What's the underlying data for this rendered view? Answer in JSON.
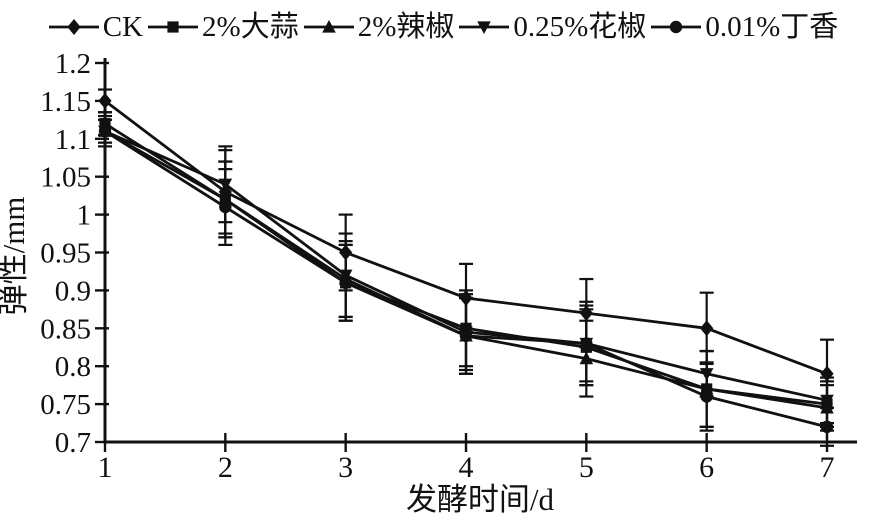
{
  "chart_data": {
    "type": "line",
    "title": "",
    "xlabel": "发酵时间/d",
    "ylabel": "弹性/mm",
    "xlim": [
      1,
      7
    ],
    "ylim": [
      0.7,
      1.2
    ],
    "ytick_step": 0.05,
    "xticks": [
      "1",
      "2",
      "3",
      "4",
      "5",
      "6",
      "7"
    ],
    "yticks": [
      "0.7",
      "0.75",
      "0.8",
      "0.85",
      "0.9",
      "0.95",
      "1",
      "1.05",
      "1.1",
      "1.15",
      "1.2"
    ],
    "grid": false,
    "legend_position": "top",
    "line_color": "#111111",
    "background": "#ffffff",
    "x": [
      1,
      2,
      3,
      4,
      5,
      6,
      7
    ],
    "series": [
      {
        "name": "CK",
        "marker": "diamond",
        "values": [
          1.15,
          1.03,
          0.95,
          0.89,
          0.87,
          0.85,
          0.79
        ],
        "errors": [
          0.015,
          0.055,
          0.05,
          0.045,
          0.045,
          0.047,
          0.045
        ]
      },
      {
        "name": "2%大蒜",
        "marker": "square",
        "values": [
          1.12,
          1.02,
          0.91,
          0.85,
          0.825,
          0.77,
          0.75
        ],
        "errors": [
          0.015,
          0.05,
          0.05,
          0.05,
          0.05,
          0.05,
          0.03
        ]
      },
      {
        "name": "2%辣椒",
        "marker": "triangle-up",
        "values": [
          1.11,
          1.02,
          0.915,
          0.84,
          0.81,
          0.77,
          0.745
        ],
        "errors": [
          0.015,
          0.05,
          0.05,
          0.05,
          0.05,
          0.05,
          0.03
        ]
      },
      {
        "name": "0.25%花椒",
        "marker": "triangle-down",
        "values": [
          1.11,
          1.04,
          0.92,
          0.845,
          0.83,
          0.79,
          0.755
        ],
        "errors": [
          0.02,
          0.05,
          0.055,
          0.05,
          0.055,
          0.03,
          0.03
        ]
      },
      {
        "name": "0.01%丁香",
        "marker": "circle",
        "values": [
          1.11,
          1.01,
          0.91,
          0.84,
          0.83,
          0.76,
          0.72
        ],
        "errors": [
          0.015,
          0.05,
          0.05,
          0.05,
          0.05,
          0.045,
          0.025
        ]
      }
    ]
  }
}
